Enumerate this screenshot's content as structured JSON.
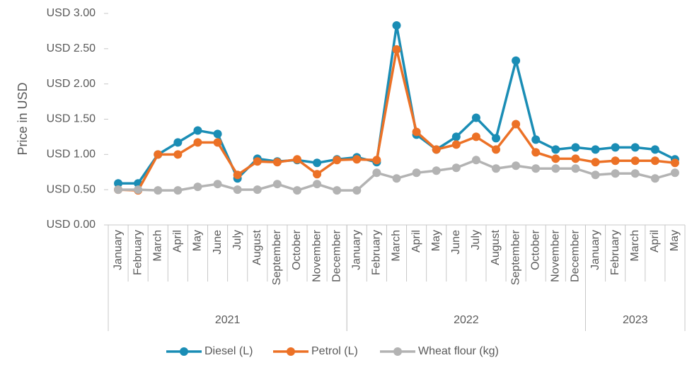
{
  "chart_data": {
    "type": "line",
    "y_label": "Price in USD",
    "categories": [
      "January",
      "February",
      "March",
      "April",
      "May",
      "June",
      "July",
      "August",
      "September",
      "October",
      "November",
      "December",
      "January",
      "February",
      "March",
      "April",
      "May",
      "June",
      "July",
      "August",
      "September",
      "October",
      "November",
      "December",
      "January",
      "February",
      "March",
      "April",
      "May"
    ],
    "year_groups": [
      {
        "label": "2021",
        "months": 12
      },
      {
        "label": "2022",
        "months": 12
      },
      {
        "label": "2023",
        "months": 5
      }
    ],
    "series": [
      {
        "name": "Diesel (L)",
        "color": "#1a8db5",
        "values": [
          0.59,
          0.59,
          1.0,
          1.17,
          1.34,
          1.29,
          0.66,
          0.94,
          0.9,
          0.92,
          0.88,
          0.93,
          0.96,
          0.89,
          2.83,
          1.28,
          1.07,
          1.25,
          1.52,
          1.23,
          2.33,
          1.21,
          1.07,
          1.1,
          1.07,
          1.1,
          1.1,
          1.07,
          0.93
        ]
      },
      {
        "name": "Petrol (L)",
        "color": "#ec7126",
        "values": [
          0.5,
          0.49,
          1.0,
          1.0,
          1.17,
          1.17,
          0.71,
          0.9,
          0.89,
          0.93,
          0.72,
          0.92,
          0.93,
          0.92,
          2.49,
          1.32,
          1.07,
          1.14,
          1.25,
          1.07,
          1.43,
          1.03,
          0.94,
          0.94,
          0.89,
          0.91,
          0.91,
          0.91,
          0.88
        ]
      },
      {
        "name": "Wheat flour (kg)",
        "color": "#b3b3b3",
        "values": [
          0.5,
          0.5,
          0.49,
          0.49,
          0.54,
          0.58,
          0.5,
          0.5,
          0.58,
          0.49,
          0.58,
          0.49,
          0.49,
          0.74,
          0.66,
          0.74,
          0.77,
          0.81,
          0.92,
          0.8,
          0.84,
          0.8,
          0.8,
          0.8,
          0.71,
          0.73,
          0.73,
          0.66,
          0.74
        ]
      }
    ],
    "ylim": [
      0,
      3
    ],
    "yticks": [
      {
        "value": 0,
        "label": "USD 0.00"
      },
      {
        "value": 0.5,
        "label": "USD 0.50"
      },
      {
        "value": 1,
        "label": "USD 1.00"
      },
      {
        "value": 1.5,
        "label": "USD 1.50"
      },
      {
        "value": 2,
        "label": "USD 2.00"
      },
      {
        "value": 2.5,
        "label": "USD 2.50"
      },
      {
        "value": 3,
        "label": "USD 3.00"
      }
    ],
    "legend": "bottom"
  }
}
